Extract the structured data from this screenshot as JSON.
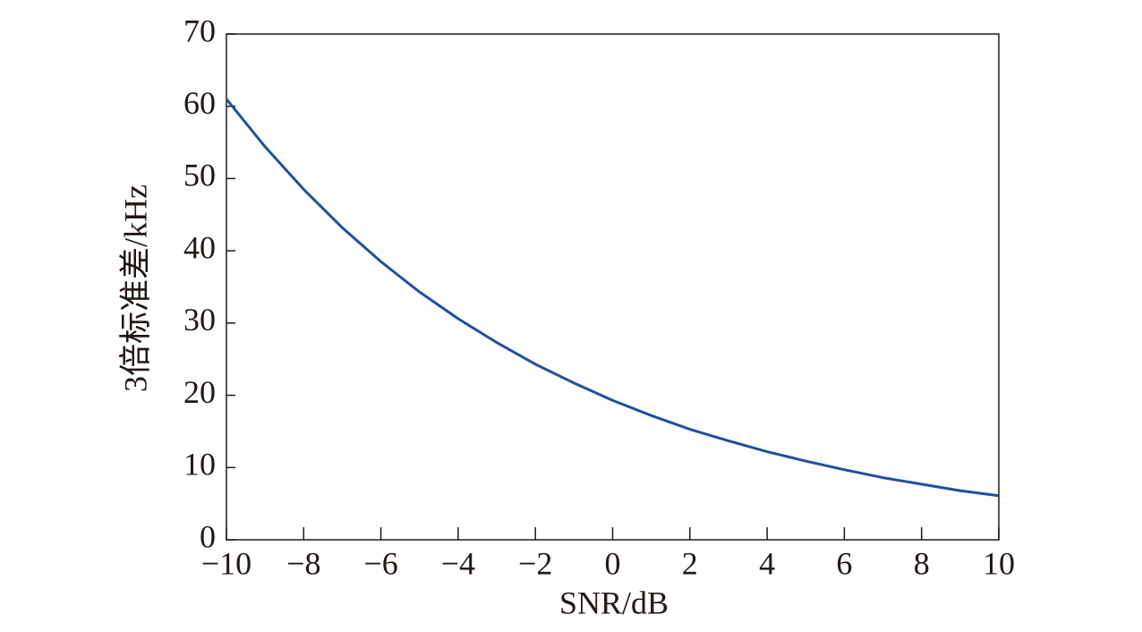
{
  "chart_data": {
    "type": "line",
    "x_label": "SNR/dB",
    "y_label": "3倍标准差/kHz",
    "x": [
      -10,
      -9,
      -8,
      -7,
      -6,
      -5,
      -4,
      -3,
      -2,
      -1,
      0,
      1,
      2,
      3,
      4,
      5,
      6,
      7,
      8,
      9,
      10
    ],
    "series": [
      {
        "color": "#1f4fa0",
        "values": [
          61.0,
          54.4,
          48.5,
          43.2,
          38.5,
          34.3,
          30.6,
          27.3,
          24.3,
          21.7,
          19.3,
          17.2,
          15.3,
          13.7,
          12.2,
          10.9,
          9.7,
          8.6,
          7.7,
          6.8,
          6.1
        ]
      }
    ],
    "xlim": [
      -10,
      10
    ],
    "xticks": [
      {
        "value": -10,
        "label": "−10"
      },
      {
        "value": -8,
        "label": "−8"
      },
      {
        "value": -6,
        "label": "−6"
      },
      {
        "value": -4,
        "label": "−4"
      },
      {
        "value": -2,
        "label": "−2"
      },
      0,
      2,
      4,
      6,
      8,
      10
    ],
    "ylim": [
      0,
      70
    ],
    "yticks": [
      0,
      10,
      20,
      30,
      40,
      50,
      60,
      70
    ],
    "grid": false
  }
}
